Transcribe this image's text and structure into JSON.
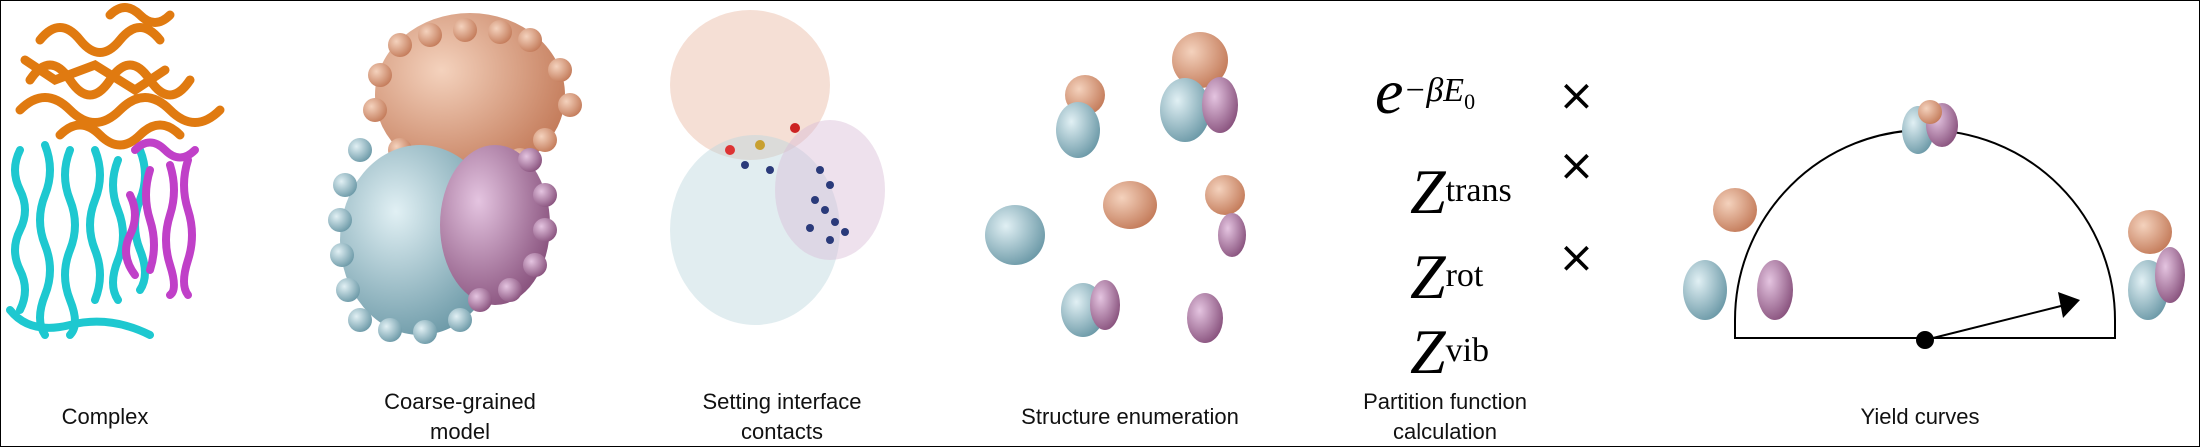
{
  "panels": [
    {
      "caption": "Complex"
    },
    {
      "caption": "Coarse-grained model"
    },
    {
      "caption": "Setting interface contacts"
    },
    {
      "caption": "Structure enumeration"
    },
    {
      "caption": "Partition function calculation"
    },
    {
      "caption": "Yield curves"
    }
  ],
  "formula": {
    "term1_base": "e",
    "term1_exp": "−βE",
    "term1_sub": "0",
    "term2_base": "Z",
    "term2_sup": "trans",
    "term3_base": "Z",
    "term3_sup": "rot",
    "term4_base": "Z",
    "term4_sup": "vib",
    "operator": "×"
  },
  "colors": {
    "orange": "#e07a10",
    "cyan": "#1ec8d0",
    "magenta": "#c040c8",
    "cg_orange": "#d99a7a",
    "cg_blue": "#8fb7c4",
    "cg_purple": "#a873a3",
    "contact_navy": "#2a3a7a"
  }
}
